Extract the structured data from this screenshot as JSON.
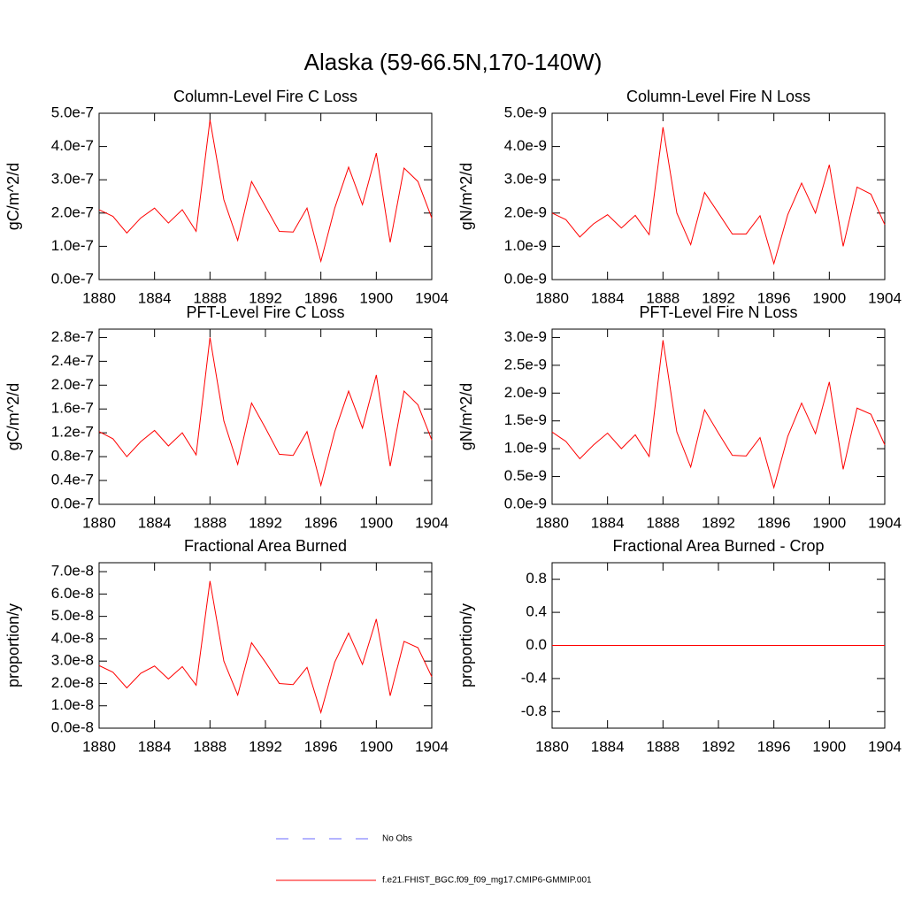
{
  "title": "Alaska (59-66.5N,170-140W)",
  "legend": [
    {
      "name": "No Obs",
      "color": "#6a6aff",
      "dashed": true
    },
    {
      "name": "f.e21.FHIST_BGC.f09_f09_mg17.CMIP6-GMMIP.001",
      "color": "#ff0000",
      "dashed": false
    }
  ],
  "chart_data": [
    {
      "type": "line",
      "title": "Column-Level Fire C Loss",
      "ylabel": "gC/m^2/d",
      "color": "#ff0000",
      "x": [
        1880,
        1881,
        1882,
        1883,
        1884,
        1885,
        1886,
        1887,
        1888,
        1889,
        1890,
        1891,
        1892,
        1893,
        1894,
        1895,
        1896,
        1897,
        1898,
        1899,
        1900,
        1901,
        1902,
        1903,
        1904
      ],
      "values": [
        2.1e-07,
        1.9e-07,
        1.4e-07,
        1.85e-07,
        2.15e-07,
        1.7e-07,
        2.1e-07,
        1.45e-07,
        4.8e-07,
        2.4e-07,
        1.18e-07,
        2.95e-07,
        2.2e-07,
        1.45e-07,
        1.43e-07,
        2.15e-07,
        5.5e-08,
        2.15e-07,
        3.38e-07,
        2.25e-07,
        3.8e-07,
        1.12e-07,
        3.35e-07,
        2.95e-07,
        1.85e-07
      ],
      "xlim": [
        1880,
        1904
      ],
      "xticks": [
        1880,
        1884,
        1888,
        1892,
        1896,
        1900,
        1904
      ],
      "ylim": [
        0,
        5e-07
      ],
      "yticks": [
        {
          "value": 0,
          "label": "0.0e-7"
        },
        {
          "value": 1e-07,
          "label": "1.0e-7"
        },
        {
          "value": 2e-07,
          "label": "2.0e-7"
        },
        {
          "value": 3e-07,
          "label": "3.0e-7"
        },
        {
          "value": 4e-07,
          "label": "4.0e-7"
        },
        {
          "value": 5e-07,
          "label": "5.0e-7"
        }
      ]
    },
    {
      "type": "line",
      "title": "Column-Level Fire N Loss",
      "ylabel": "gN/m^2/d",
      "color": "#ff0000",
      "x": [
        1880,
        1881,
        1882,
        1883,
        1884,
        1885,
        1886,
        1887,
        1888,
        1889,
        1890,
        1891,
        1892,
        1893,
        1894,
        1895,
        1896,
        1897,
        1898,
        1899,
        1900,
        1901,
        1902,
        1903,
        1904
      ],
      "values": [
        2e-09,
        1.8e-09,
        1.28e-09,
        1.68e-09,
        1.95e-09,
        1.55e-09,
        1.93e-09,
        1.35e-09,
        4.58e-09,
        2e-09,
        1.05e-09,
        2.62e-09,
        2e-09,
        1.37e-09,
        1.37e-09,
        1.92e-09,
        4.8e-10,
        1.95e-09,
        2.9e-09,
        2e-09,
        3.45e-09,
        1e-09,
        2.78e-09,
        2.57e-09,
        1.65e-09
      ],
      "xlim": [
        1880,
        1904
      ],
      "xticks": [
        1880,
        1884,
        1888,
        1892,
        1896,
        1900,
        1904
      ],
      "ylim": [
        0,
        5e-09
      ],
      "yticks": [
        {
          "value": 0,
          "label": "0.0e-9"
        },
        {
          "value": 1e-09,
          "label": "1.0e-9"
        },
        {
          "value": 2e-09,
          "label": "2.0e-9"
        },
        {
          "value": 3e-09,
          "label": "3.0e-9"
        },
        {
          "value": 4e-09,
          "label": "4.0e-9"
        },
        {
          "value": 5e-09,
          "label": "5.0e-9"
        }
      ]
    },
    {
      "type": "line",
      "title": "PFT-Level Fire C Loss",
      "ylabel": "gC/m^2/d",
      "color": "#ff0000",
      "x": [
        1880,
        1881,
        1882,
        1883,
        1884,
        1885,
        1886,
        1887,
        1888,
        1889,
        1890,
        1891,
        1892,
        1893,
        1894,
        1895,
        1896,
        1897,
        1898,
        1899,
        1900,
        1901,
        1902,
        1903,
        1904
      ],
      "values": [
        1.22e-07,
        1.1e-07,
        8e-08,
        1.05e-07,
        1.24e-07,
        9.8e-08,
        1.2e-07,
        8.3e-08,
        2.8e-07,
        1.4e-07,
        6.7e-08,
        1.7e-07,
        1.28e-07,
        8.4e-08,
        8.2e-08,
        1.22e-07,
        3.2e-08,
        1.22e-07,
        1.9e-07,
        1.28e-07,
        2.17e-07,
        6.4e-08,
        1.9e-07,
        1.67e-07,
        1.08e-07
      ],
      "xlim": [
        1880,
        1904
      ],
      "xticks": [
        1880,
        1884,
        1888,
        1892,
        1896,
        1900,
        1904
      ],
      "ylim": [
        0,
        2.94e-07
      ],
      "yticks": [
        {
          "value": 0,
          "label": "0.0e-7"
        },
        {
          "value": 4e-08,
          "label": "0.4e-7"
        },
        {
          "value": 8e-08,
          "label": "0.8e-7"
        },
        {
          "value": 1.2e-07,
          "label": "1.2e-7"
        },
        {
          "value": 1.6e-07,
          "label": "1.6e-7"
        },
        {
          "value": 2e-07,
          "label": "2.0e-7"
        },
        {
          "value": 2.4e-07,
          "label": "2.4e-7"
        },
        {
          "value": 2.8e-07,
          "label": "2.8e-7"
        }
      ]
    },
    {
      "type": "line",
      "title": "PFT-Level Fire N Loss",
      "ylabel": "gN/m^2/d",
      "color": "#ff0000",
      "x": [
        1880,
        1881,
        1882,
        1883,
        1884,
        1885,
        1886,
        1887,
        1888,
        1889,
        1890,
        1891,
        1892,
        1893,
        1894,
        1895,
        1896,
        1897,
        1898,
        1899,
        1900,
        1901,
        1902,
        1903,
        1904
      ],
      "values": [
        1.3e-09,
        1.13e-09,
        8.2e-10,
        1.07e-09,
        1.28e-09,
        1e-09,
        1.25e-09,
        8.6e-10,
        2.95e-09,
        1.3e-09,
        6.7e-10,
        1.7e-09,
        1.28e-09,
        8.8e-10,
        8.7e-10,
        1.2e-09,
        3e-10,
        1.22e-09,
        1.82e-09,
        1.27e-09,
        2.2e-09,
        6.3e-10,
        1.73e-09,
        1.62e-09,
        1.07e-09
      ],
      "xlim": [
        1880,
        1904
      ],
      "xticks": [
        1880,
        1884,
        1888,
        1892,
        1896,
        1900,
        1904
      ],
      "ylim": [
        0,
        3.15e-09
      ],
      "yticks": [
        {
          "value": 0,
          "label": "0.0e-9"
        },
        {
          "value": 5e-10,
          "label": "0.5e-9"
        },
        {
          "value": 1e-09,
          "label": "1.0e-9"
        },
        {
          "value": 1.5e-09,
          "label": "1.5e-9"
        },
        {
          "value": 2e-09,
          "label": "2.0e-9"
        },
        {
          "value": 2.5e-09,
          "label": "2.5e-9"
        },
        {
          "value": 3e-09,
          "label": "3.0e-9"
        }
      ]
    },
    {
      "type": "line",
      "title": "Fractional Area Burned",
      "ylabel": "proportion/y",
      "color": "#ff0000",
      "x": [
        1880,
        1881,
        1882,
        1883,
        1884,
        1885,
        1886,
        1887,
        1888,
        1889,
        1890,
        1891,
        1892,
        1893,
        1894,
        1895,
        1896,
        1897,
        1898,
        1899,
        1900,
        1901,
        1902,
        1903,
        1904
      ],
      "values": [
        2.8e-08,
        2.5e-08,
        1.8e-08,
        2.45e-08,
        2.78e-08,
        2.2e-08,
        2.75e-08,
        1.92e-08,
        6.58e-08,
        3e-08,
        1.48e-08,
        3.82e-08,
        2.95e-08,
        2e-08,
        1.95e-08,
        2.72e-08,
        7e-09,
        2.95e-08,
        4.25e-08,
        2.85e-08,
        4.88e-08,
        1.45e-08,
        3.88e-08,
        3.6e-08,
        2.3e-08
      ],
      "xlim": [
        1880,
        1904
      ],
      "xticks": [
        1880,
        1884,
        1888,
        1892,
        1896,
        1900,
        1904
      ],
      "ylim": [
        0,
        7.4e-08
      ],
      "yticks": [
        {
          "value": 0,
          "label": "0.0e-8"
        },
        {
          "value": 1e-08,
          "label": "1.0e-8"
        },
        {
          "value": 2e-08,
          "label": "2.0e-8"
        },
        {
          "value": 3e-08,
          "label": "3.0e-8"
        },
        {
          "value": 4e-08,
          "label": "4.0e-8"
        },
        {
          "value": 5e-08,
          "label": "5.0e-8"
        },
        {
          "value": 6e-08,
          "label": "6.0e-8"
        },
        {
          "value": 7e-08,
          "label": "7.0e-8"
        }
      ]
    },
    {
      "type": "line",
      "title": "Fractional Area Burned - Crop",
      "ylabel": "proportion/y",
      "color": "#ff0000",
      "x": [
        1880,
        1881,
        1882,
        1883,
        1884,
        1885,
        1886,
        1887,
        1888,
        1889,
        1890,
        1891,
        1892,
        1893,
        1894,
        1895,
        1896,
        1897,
        1898,
        1899,
        1900,
        1901,
        1902,
        1903,
        1904
      ],
      "values": [
        0,
        0,
        0,
        0,
        0,
        0,
        0,
        0,
        0,
        0,
        0,
        0,
        0,
        0,
        0,
        0,
        0,
        0,
        0,
        0,
        0,
        0,
        0,
        0,
        0
      ],
      "xlim": [
        1880,
        1904
      ],
      "xticks": [
        1880,
        1884,
        1888,
        1892,
        1896,
        1900,
        1904
      ],
      "ylim": [
        -1,
        1
      ],
      "yticks": [
        -0.8,
        -0.4,
        {
          "value": 0,
          "label": "0.0"
        },
        0.4,
        0.8
      ]
    }
  ]
}
